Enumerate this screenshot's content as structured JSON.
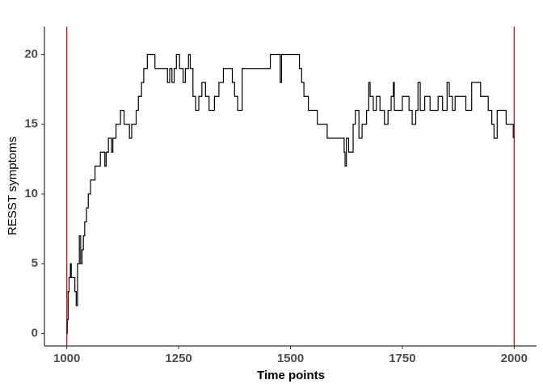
{
  "chart_data": {
    "type": "line",
    "line_shape": "step",
    "color": "#000000",
    "x_label": "Time points",
    "y_label": "RESST symptoms",
    "x": [
      1000,
      1001,
      1003,
      1005,
      1008,
      1010,
      1015,
      1018,
      1021,
      1024,
      1028,
      1031,
      1034,
      1037,
      1040,
      1044,
      1048,
      1053,
      1060,
      1063,
      1070,
      1075,
      1085,
      1088,
      1093,
      1100,
      1103,
      1110,
      1120,
      1128,
      1140,
      1145,
      1155,
      1160,
      1167,
      1172,
      1180,
      1197,
      1225,
      1230,
      1235,
      1240,
      1245,
      1252,
      1260,
      1265,
      1272,
      1276,
      1282,
      1288,
      1295,
      1302,
      1310,
      1318,
      1330,
      1340,
      1350,
      1370,
      1375,
      1382,
      1392,
      1455,
      1477,
      1480,
      1520,
      1525,
      1530,
      1540,
      1560,
      1582,
      1620,
      1622,
      1625,
      1630,
      1640,
      1645,
      1653,
      1660,
      1670,
      1675,
      1678,
      1685,
      1692,
      1700,
      1710,
      1718,
      1725,
      1730,
      1732,
      1750,
      1765,
      1772,
      1780,
      1785,
      1790,
      1800,
      1812,
      1830,
      1840,
      1850,
      1855,
      1862,
      1868,
      1892,
      1905,
      1925,
      1942,
      1950,
      1955,
      1962,
      1982,
      1998
    ],
    "values": [
      0,
      1,
      3,
      4,
      5,
      4,
      4,
      3,
      2,
      5,
      7,
      5,
      6,
      7,
      8,
      9,
      10,
      11,
      11,
      12,
      12,
      13,
      12,
      13,
      14,
      13,
      14,
      15,
      16,
      15,
      14,
      15,
      16,
      17,
      18,
      19,
      20,
      19,
      18,
      19,
      18,
      19,
      20,
      19,
      18,
      19,
      20,
      19,
      17,
      16,
      17,
      18,
      17,
      16,
      17,
      18,
      19,
      18,
      17,
      16,
      19,
      20,
      18,
      20,
      19,
      18,
      17,
      16,
      15,
      14,
      13,
      12,
      14,
      13,
      15,
      16,
      14,
      15,
      16,
      18,
      17,
      16,
      17,
      16,
      15,
      16,
      17,
      18,
      16,
      17,
      16,
      15,
      16,
      18,
      16,
      17,
      16,
      17,
      16,
      18,
      17,
      16,
      17,
      16,
      18,
      17,
      16,
      15,
      14,
      16,
      15,
      14
    ],
    "vlines": [
      1000,
      2000
    ],
    "vline_color": "#cc0000",
    "xlim": [
      950,
      2050
    ],
    "xticks": [
      1000,
      1250,
      1500,
      1750,
      2000
    ],
    "ylim": [
      -0.9,
      22
    ],
    "yticks": [
      0,
      5,
      10,
      15,
      20
    ],
    "grid": false
  }
}
